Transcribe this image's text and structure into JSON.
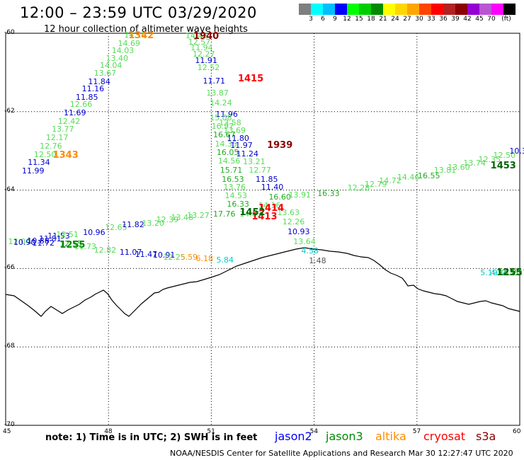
{
  "header": {
    "title": "12:00 – 23:59 UTC 03/29/2020",
    "subtitle": "12 hour collection of altimeter wave heights"
  },
  "colorbar": {
    "colors": [
      "#7f7f7f",
      "#00ffff",
      "#00bfff",
      "#0000ff",
      "#00ff00",
      "#00cd00",
      "#008b00",
      "#ffff00",
      "#ffd700",
      "#ffa500",
      "#ff4500",
      "#ff0000",
      "#b22222",
      "#8b0000",
      "#9400d3",
      "#ba55d3",
      "#ff00ff",
      "#000000"
    ],
    "labels": [
      "3",
      "6",
      "9",
      "12",
      "15",
      "18",
      "21",
      "24",
      "27",
      "30",
      "33",
      "36",
      "39",
      "42",
      "45",
      "70",
      "(ft)"
    ]
  },
  "axes": {
    "lat_labels": [
      "-60",
      "-62",
      "-64",
      "-66",
      "-68",
      "-70"
    ],
    "lon_labels": [
      "45",
      "48",
      "51",
      "54",
      "57",
      "60"
    ]
  },
  "tracks": [
    {
      "satellite": "jason3",
      "points": [
        {
          "v": "14.19",
          "lon": 48.78,
          "lat": -60.03,
          "c": "#55dd55"
        },
        {
          "v": "14.69",
          "lon": 48.6,
          "lat": -60.25,
          "c": "#55dd55"
        },
        {
          "v": "14.03",
          "lon": 48.42,
          "lat": -60.44,
          "c": "#55dd55"
        },
        {
          "v": "13.40",
          "lon": 48.25,
          "lat": -60.63,
          "c": "#55dd55"
        },
        {
          "v": "14.04",
          "lon": 48.07,
          "lat": -60.82,
          "c": "#55dd55"
        },
        {
          "v": "13.67",
          "lon": 47.9,
          "lat": -61.01,
          "c": "#55dd55"
        },
        {
          "v": "11.84",
          "lon": 47.73,
          "lat": -61.22,
          "c": "#0000cc"
        },
        {
          "v": "11.16",
          "lon": 47.55,
          "lat": -61.41,
          "c": "#0000cc"
        },
        {
          "v": "11.85",
          "lon": 47.37,
          "lat": -61.62,
          "c": "#0000cc"
        },
        {
          "v": "12.66",
          "lon": 47.2,
          "lat": -61.81,
          "c": "#55dd55"
        },
        {
          "v": "11.69",
          "lon": 47.02,
          "lat": -62.02,
          "c": "#0000cc"
        },
        {
          "v": "12.42",
          "lon": 46.85,
          "lat": -62.24,
          "c": "#55dd55"
        },
        {
          "v": "13.77",
          "lon": 46.67,
          "lat": -62.44,
          "c": "#55dd55"
        },
        {
          "v": "12.17",
          "lon": 46.5,
          "lat": -62.66,
          "c": "#55dd55"
        },
        {
          "v": "12.76",
          "lon": 46.32,
          "lat": -62.87,
          "c": "#55dd55"
        },
        {
          "v": "12.50",
          "lon": 46.15,
          "lat": -63.08,
          "c": "#55dd55"
        },
        {
          "v": "11.34",
          "lon": 45.97,
          "lat": -63.29,
          "c": "#0000cc"
        },
        {
          "v": "11.99",
          "lon": 45.8,
          "lat": -63.51,
          "c": "#0000cc"
        }
      ]
    },
    {
      "satellite": "jason3",
      "points": [
        {
          "v": "14.45",
          "lon": 50.57,
          "lat": -60.05,
          "c": "#55dd55"
        },
        {
          "v": "12.57",
          "lon": 50.65,
          "lat": -60.22,
          "c": "#55dd55"
        },
        {
          "v": "11.94",
          "lon": 50.72,
          "lat": -60.37,
          "c": "#55dd55"
        },
        {
          "v": "12.27",
          "lon": 50.78,
          "lat": -60.52,
          "c": "#55dd55"
        },
        {
          "v": "11.91",
          "lon": 50.85,
          "lat": -60.69,
          "c": "#0000cc"
        },
        {
          "v": "12.52",
          "lon": 50.92,
          "lat": -60.86,
          "c": "#55dd55"
        },
        {
          "v": "11.71",
          "lon": 51.08,
          "lat": -61.21,
          "c": "#0000cc"
        },
        {
          "v": "13.87",
          "lon": 51.18,
          "lat": -61.52,
          "c": "#55dd55"
        },
        {
          "v": "14.24",
          "lon": 51.28,
          "lat": -61.76,
          "c": "#55dd55"
        },
        {
          "v": "11.96",
          "lon": 51.45,
          "lat": -62.05,
          "c": "#0000cc"
        },
        {
          "v": "15.08",
          "lon": 51.28,
          "lat": -62.15,
          "c": "#55dd55"
        },
        {
          "v": "13.58",
          "lon": 51.55,
          "lat": -62.27,
          "c": "#55dd55"
        },
        {
          "v": "16.97",
          "lon": 51.33,
          "lat": -62.37,
          "c": "#55dd55"
        },
        {
          "v": "13.69",
          "lon": 51.68,
          "lat": -62.48,
          "c": "#55dd55"
        },
        {
          "v": "16.67",
          "lon": 51.38,
          "lat": -62.59,
          "c": "#22aa22"
        },
        {
          "v": "11.80",
          "lon": 51.78,
          "lat": -62.68,
          "c": "#0000cc"
        },
        {
          "v": "14.35",
          "lon": 51.43,
          "lat": -62.81,
          "c": "#55dd55"
        },
        {
          "v": "11.97",
          "lon": 51.88,
          "lat": -62.85,
          "c": "#0000cc"
        },
        {
          "v": "16.05",
          "lon": 51.48,
          "lat": -63.03,
          "c": "#22aa22"
        },
        {
          "v": "11.24",
          "lon": 52.05,
          "lat": -63.07,
          "c": "#0000cc"
        },
        {
          "v": "14.56",
          "lon": 51.52,
          "lat": -63.25,
          "c": "#55dd55"
        },
        {
          "v": "13.21",
          "lon": 52.25,
          "lat": -63.27,
          "c": "#55dd55"
        },
        {
          "v": "15.71",
          "lon": 51.58,
          "lat": -63.48,
          "c": "#22aa22"
        },
        {
          "v": "12.77",
          "lon": 52.42,
          "lat": -63.48,
          "c": "#55dd55"
        },
        {
          "v": "16.53",
          "lon": 51.63,
          "lat": -63.71,
          "c": "#22aa22"
        },
        {
          "v": "11.85",
          "lon": 52.62,
          "lat": -63.71,
          "c": "#0000cc"
        },
        {
          "v": "13.76",
          "lon": 51.68,
          "lat": -63.92,
          "c": "#55dd55"
        },
        {
          "v": "11.40",
          "lon": 52.78,
          "lat": -63.92,
          "c": "#0000cc"
        },
        {
          "v": "14.53",
          "lon": 51.72,
          "lat": -64.14,
          "c": "#55dd55"
        },
        {
          "v": "16.60",
          "lon": 53.0,
          "lat": -64.17,
          "c": "#22aa22"
        },
        {
          "v": "16.33",
          "lon": 51.78,
          "lat": -64.35,
          "c": "#22aa22"
        },
        {
          "v": "13.63",
          "lon": 53.25,
          "lat": -64.57,
          "c": "#55dd55"
        },
        {
          "v": "12.26",
          "lon": 53.4,
          "lat": -64.81,
          "c": "#55dd55"
        },
        {
          "v": "10.93",
          "lon": 53.55,
          "lat": -65.06,
          "c": "#0000cc"
        },
        {
          "v": "13.64",
          "lon": 53.72,
          "lat": -65.3,
          "c": "#55dd55"
        },
        {
          "v": "4.58",
          "lon": 53.88,
          "lat": -65.55,
          "c": "#00cccc"
        },
        {
          "v": "1.48",
          "lon": 54.1,
          "lat": -65.8,
          "c": "#555555"
        }
      ]
    },
    {
      "satellite": "jason3",
      "points": [
        {
          "v": "11.53",
          "lon": 46.55,
          "lat": -65.17,
          "c": "#0000cc"
        },
        {
          "v": "12.51",
          "lon": 46.8,
          "lat": -65.12,
          "c": "#55dd55"
        },
        {
          "v": "10.96",
          "lon": 47.58,
          "lat": -65.07,
          "c": "#0000cc"
        },
        {
          "v": "12.65",
          "lon": 48.22,
          "lat": -64.95,
          "c": "#55dd55"
        },
        {
          "v": "11.82",
          "lon": 48.72,
          "lat": -64.88,
          "c": "#0000cc"
        },
        {
          "v": "13.20",
          "lon": 49.3,
          "lat": -64.83,
          "c": "#55dd55"
        },
        {
          "v": "12.39",
          "lon": 49.72,
          "lat": -64.75,
          "c": "#55dd55"
        },
        {
          "v": "13.48",
          "lon": 50.15,
          "lat": -64.7,
          "c": "#55dd55"
        },
        {
          "v": "13.27",
          "lon": 50.62,
          "lat": -64.63,
          "c": "#55dd55"
        },
        {
          "v": "17.76",
          "lon": 51.38,
          "lat": -64.6,
          "c": "#22aa22"
        },
        {
          "v": "14.83",
          "lon": 52.15,
          "lat": -64.6,
          "c": "#55dd55"
        },
        {
          "v": "14.16",
          "lon": 52.7,
          "lat": -64.38,
          "c": "#55dd55"
        },
        {
          "v": "13.91",
          "lon": 53.58,
          "lat": -64.12,
          "c": "#55dd55"
        },
        {
          "v": "16.33",
          "lon": 54.42,
          "lat": -64.08,
          "c": "#22aa22"
        },
        {
          "v": "12.28",
          "lon": 55.3,
          "lat": -63.93,
          "c": "#55dd55"
        },
        {
          "v": "12.79",
          "lon": 55.8,
          "lat": -63.85,
          "c": "#55dd55"
        },
        {
          "v": "14.72",
          "lon": 56.22,
          "lat": -63.76,
          "c": "#55dd55"
        },
        {
          "v": "14.46",
          "lon": 56.75,
          "lat": -63.66,
          "c": "#55dd55"
        },
        {
          "v": "16.55",
          "lon": 57.35,
          "lat": -63.62,
          "c": "#22aa22"
        },
        {
          "v": "13.81",
          "lon": 57.82,
          "lat": -63.49,
          "c": "#55dd55"
        },
        {
          "v": "13.60",
          "lon": 58.22,
          "lat": -63.42,
          "c": "#55dd55"
        },
        {
          "v": "13.74",
          "lon": 58.68,
          "lat": -63.3,
          "c": "#55dd55"
        },
        {
          "v": "12.35",
          "lon": 59.12,
          "lat": -63.22,
          "c": "#55dd55"
        },
        {
          "v": "12.50",
          "lon": 59.55,
          "lat": -63.1,
          "c": "#55dd55"
        },
        {
          "v": "10.3",
          "lon": 59.95,
          "lat": -63.0,
          "c": "#0000cc"
        }
      ]
    },
    {
      "satellite": "mixed",
      "points": [
        {
          "v": "12.04",
          "lon": 45.4,
          "lat": -65.3,
          "c": "#55dd55"
        },
        {
          "v": "10.90",
          "lon": 45.55,
          "lat": -65.32,
          "c": "#0000cc"
        },
        {
          "v": "10.88",
          "lon": 45.95,
          "lat": -65.28,
          "c": "#0000cc"
        },
        {
          "v": "11.81",
          "lon": 46.3,
          "lat": -65.24,
          "c": "#0000cc"
        },
        {
          "v": "11.72",
          "lon": 46.1,
          "lat": -65.34,
          "c": "#0000cc"
        },
        {
          "v": "12.55",
          "lon": 46.9,
          "lat": -65.36,
          "c": "#22aa22"
        },
        {
          "v": "11.73",
          "lon": 47.32,
          "lat": -65.44,
          "c": "#55dd55"
        },
        {
          "v": "12.82",
          "lon": 47.9,
          "lat": -65.52,
          "c": "#55dd55"
        },
        {
          "v": "11.07",
          "lon": 48.65,
          "lat": -65.57,
          "c": "#0000cc"
        },
        {
          "v": "11.47",
          "lon": 49.1,
          "lat": -65.63,
          "c": "#0000cc"
        },
        {
          "v": "10.91",
          "lon": 49.62,
          "lat": -65.65,
          "c": "#0000cc"
        },
        {
          "v": "12.25",
          "lon": 49.92,
          "lat": -65.7,
          "c": "#55dd55"
        },
        {
          "v": "5.59",
          "lon": 50.35,
          "lat": -65.71,
          "c": "#ff8c00"
        },
        {
          "v": "6.18",
          "lon": 50.8,
          "lat": -65.74,
          "c": "#ff8c00"
        },
        {
          "v": "5.84",
          "lon": 51.4,
          "lat": -65.77,
          "c": "#00cccc"
        },
        {
          "v": "5.19",
          "lon": 59.1,
          "lat": -66.1,
          "c": "#00cccc"
        },
        {
          "v": "4.94",
          "lon": 59.4,
          "lat": -66.1,
          "c": "#00cccc"
        },
        {
          "v": "12.35",
          "lon": 59.65,
          "lat": -66.1,
          "c": "#22aa22"
        },
        {
          "v": "12.37",
          "lon": 59.9,
          "lat": -66.1,
          "c": "#22aa22"
        }
      ]
    }
  ],
  "time_marks": [
    {
      "v": "1342",
      "lon": 48.95,
      "lat": -60.06,
      "c": "#ff8c00"
    },
    {
      "v": "1940",
      "lon": 50.85,
      "lat": -60.08,
      "c": "#8b0000"
    },
    {
      "v": "1415",
      "lon": 52.15,
      "lat": -61.15,
      "c": "#ff0000"
    },
    {
      "v": "1939",
      "lon": 53.0,
      "lat": -62.85,
      "c": "#8b0000"
    },
    {
      "v": "1343",
      "lon": 46.75,
      "lat": -63.1,
      "c": "#ff8c00"
    },
    {
      "v": "1453",
      "lon": 59.52,
      "lat": -63.38,
      "c": "#006400"
    },
    {
      "v": "1414",
      "lon": 52.75,
      "lat": -64.45,
      "c": "#ff0000"
    },
    {
      "v": "1413",
      "lon": 52.55,
      "lat": -64.67,
      "c": "#ff0000"
    },
    {
      "v": "1452",
      "lon": 52.2,
      "lat": -64.57,
      "c": "#006400"
    },
    {
      "v": "1255",
      "lon": 46.95,
      "lat": -65.4,
      "c": "#008b00"
    },
    {
      "v": "1255",
      "lon": 59.7,
      "lat": -66.1,
      "c": "#006400"
    }
  ],
  "footer": {
    "note": "note:  1) Time is in UTC;  2) SWH is in feet",
    "legend": [
      {
        "name": "jason2",
        "color": "#0000ff"
      },
      {
        "name": "jason3",
        "color": "#008b00"
      },
      {
        "name": "altika",
        "color": "#ff8c00"
      },
      {
        "name": "cryosat",
        "color": "#ff0000"
      },
      {
        "name": "s3a",
        "color": "#8b0000"
      }
    ],
    "credit": "NOAA/NESDIS Center for Satellite Applications and Research     Mar 30 12:27:47 UTC 2020"
  }
}
